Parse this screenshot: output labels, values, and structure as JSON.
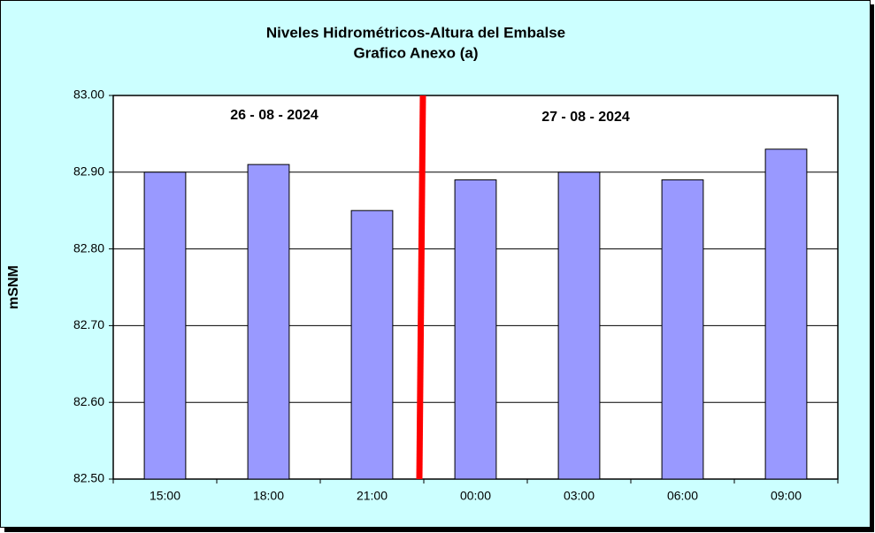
{
  "chart_data": {
    "type": "bar",
    "title": "Niveles Hidrométricos-Altura del Embalse",
    "subtitle": "Grafico Anexo (a)",
    "y_label": "mSNM",
    "annotations": [
      "26 - 08 - 2024",
      "27 - 08 - 2024"
    ],
    "categories": [
      "15:00",
      "18:00",
      "21:00",
      "00:00",
      "03:00",
      "06:00",
      "09:00"
    ],
    "values": [
      82.9,
      82.91,
      82.85,
      82.89,
      82.9,
      82.89,
      82.93
    ],
    "color": "#9999ff",
    "ylim": [
      82.5,
      83.0
    ],
    "yticks": [
      {
        "value": 82.5,
        "label": "82.50"
      },
      {
        "value": 82.6,
        "label": "82.60"
      },
      {
        "value": 82.7,
        "label": "82.70"
      },
      {
        "value": 82.8,
        "label": "82.80"
      },
      {
        "value": 82.9,
        "label": "82.90"
      },
      {
        "value": 83.0,
        "label": "83.00"
      }
    ],
    "grid": true
  }
}
